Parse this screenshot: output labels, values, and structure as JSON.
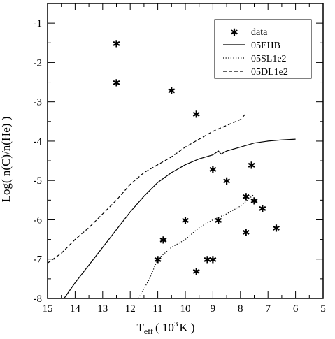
{
  "chart_data": {
    "type": "scatter",
    "xlabel": "T",
    "xlabel_sub": "eff",
    "xlabel_tail": "( 10",
    "xlabel_sup": "3",
    "xlabel_end": "K )",
    "ylabel": "Log( n(C)/n(He) )",
    "xlim": [
      15,
      5
    ],
    "ylim": [
      -8,
      -0.5
    ],
    "xticks": [
      15,
      14,
      13,
      12,
      11,
      10,
      9,
      8,
      7,
      6,
      5
    ],
    "yticks": [
      -8,
      -7,
      -6,
      -5,
      -4,
      -3,
      -2,
      -1
    ],
    "grid": false,
    "legend_position": "top-right",
    "series": [
      {
        "name": "data",
        "style": "marker",
        "marker": "*",
        "color": "#000000",
        "x": [
          12.5,
          12.5,
          10.5,
          9.6,
          9.0,
          8.5,
          7.6,
          7.8,
          7.5,
          7.2,
          6.7,
          7.8,
          8.8,
          10.0,
          10.8,
          11.0,
          9.6,
          9.2,
          9.0
        ],
        "y": [
          -1.5,
          -2.5,
          -2.7,
          -3.3,
          -4.7,
          -5.0,
          -4.6,
          -5.4,
          -5.5,
          -5.7,
          -6.2,
          -6.3,
          -6.0,
          -6.0,
          -6.5,
          -7.0,
          -7.3,
          -7.0,
          -7.0
        ]
      },
      {
        "name": "05EHB",
        "style": "solid",
        "color": "#000000",
        "x": [
          14.4,
          14.0,
          13.5,
          13.0,
          12.5,
          12.0,
          11.5,
          11.0,
          10.5,
          10.0,
          9.5,
          9.0,
          8.8,
          8.7,
          8.5,
          8.0,
          7.5,
          7.0,
          6.5,
          6.0
        ],
        "y": [
          -8.0,
          -7.6,
          -7.15,
          -6.7,
          -6.25,
          -5.8,
          -5.4,
          -5.05,
          -4.8,
          -4.6,
          -4.45,
          -4.35,
          -4.25,
          -4.33,
          -4.25,
          -4.15,
          -4.05,
          -4.0,
          -3.97,
          -3.95
        ]
      },
      {
        "name": "05SL1e2",
        "style": "dotted",
        "color": "#000000",
        "x": [
          11.7,
          11.3,
          11.0,
          10.5,
          10.0,
          9.5,
          9.0,
          8.5,
          8.0,
          7.5
        ],
        "y": [
          -8.0,
          -7.5,
          -7.0,
          -6.7,
          -6.5,
          -6.2,
          -6.0,
          -5.85,
          -5.65,
          -5.35
        ]
      },
      {
        "name": "05DL1e2",
        "style": "dashed",
        "color": "#000000",
        "x": [
          15.0,
          14.5,
          14.0,
          13.5,
          13.0,
          12.5,
          12.0,
          11.5,
          11.0,
          10.5,
          10.0,
          9.5,
          9.0,
          8.5,
          8.0,
          7.8
        ],
        "y": [
          -7.1,
          -6.85,
          -6.5,
          -6.2,
          -5.85,
          -5.5,
          -5.1,
          -4.8,
          -4.6,
          -4.4,
          -4.15,
          -3.95,
          -3.75,
          -3.6,
          -3.45,
          -3.3
        ]
      }
    ]
  }
}
